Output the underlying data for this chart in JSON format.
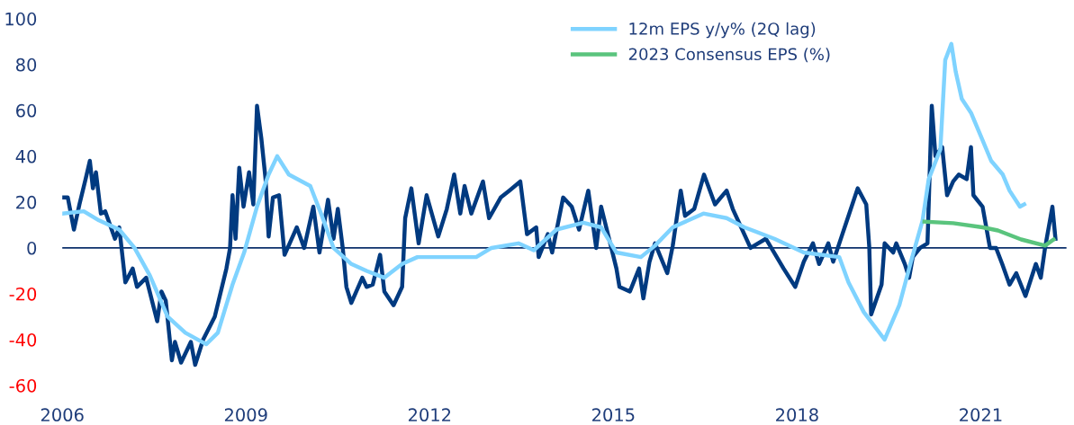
{
  "chart_data": {
    "type": "line",
    "xlim": [
      2006,
      2022.4
    ],
    "xticks": [
      2006,
      2009,
      2012,
      2015,
      2018,
      2021
    ],
    "ylim": [
      -60,
      100
    ],
    "yticks": [
      -60,
      -40,
      -20,
      0,
      20,
      40,
      60,
      80,
      100
    ],
    "grid": false,
    "legend": "top right",
    "marker": "none",
    "line_style": "solid",
    "ref_lines": [
      {
        "axis": "y",
        "value": 0,
        "color": "#0b2f6b"
      }
    ],
    "series": [
      {
        "color": "#003a80",
        "x": [
          2006.0,
          2006.09,
          2006.19,
          2006.28,
          2006.38,
          2006.45,
          2006.5,
          2006.55,
          2006.63,
          2006.7,
          2006.86,
          2006.93,
          2007.03,
          2007.15,
          2007.22,
          2007.37,
          2007.55,
          2007.62,
          2007.69,
          2007.79,
          2007.84,
          2007.94,
          2008.1,
          2008.17,
          2008.3,
          2008.49,
          2008.68,
          2008.74,
          2008.78,
          2008.83,
          2008.89,
          2008.96,
          2009.05,
          2009.12,
          2009.18,
          2009.25,
          2009.32,
          2009.37,
          2009.44,
          2009.54,
          2009.63,
          2009.83,
          2009.95,
          2010.1,
          2010.2,
          2010.34,
          2010.43,
          2010.5,
          2010.58,
          2010.64,
          2010.72,
          2010.9,
          2010.97,
          2011.07,
          2011.19,
          2011.26,
          2011.41,
          2011.55,
          2011.6,
          2011.7,
          2011.82,
          2011.95,
          2012.14,
          2012.28,
          2012.4,
          2012.5,
          2012.57,
          2012.68,
          2012.87,
          2012.97,
          2013.16,
          2013.3,
          2013.48,
          2013.59,
          2013.74,
          2013.78,
          2013.93,
          2014.0,
          2014.18,
          2014.32,
          2014.44,
          2014.59,
          2014.72,
          2014.8,
          2015.05,
          2015.1,
          2015.27,
          2015.42,
          2015.49,
          2015.59,
          2015.68,
          2015.88,
          2015.97,
          2016.1,
          2016.17,
          2016.32,
          2016.48,
          2016.66,
          2016.85,
          2016.95,
          2017.24,
          2017.49,
          2017.78,
          2017.97,
          2018.11,
          2018.26,
          2018.36,
          2018.51,
          2018.59,
          2018.74,
          2018.84,
          2018.99,
          2019.13,
          2019.18,
          2019.21,
          2019.38,
          2019.43,
          2019.57,
          2019.62,
          2019.76,
          2019.83,
          2019.89,
          2020.01,
          2020.13,
          2020.2,
          2020.26,
          2020.37,
          2020.45,
          2020.55,
          2020.64,
          2020.77,
          2020.84,
          2020.88,
          2021.03,
          2021.15,
          2021.25,
          2021.35,
          2021.47,
          2021.58,
          2021.73,
          2021.9,
          2021.98,
          2022.05,
          2022.17,
          2022.22
        ],
        "values": [
          22,
          22,
          8,
          19,
          30,
          38,
          26,
          33,
          15,
          16,
          4,
          9,
          -15,
          -9,
          -17,
          -13,
          -32,
          -19,
          -23,
          -49,
          -41,
          -50,
          -41,
          -51,
          -40,
          -30,
          -9,
          0,
          23,
          4,
          35,
          18,
          33,
          19,
          62,
          48,
          30,
          5,
          22,
          23,
          -3,
          9,
          0,
          18,
          -2,
          21,
          4,
          17,
          0,
          -17,
          -24,
          -13,
          -17,
          -16,
          -3,
          -19,
          -25,
          -17,
          13,
          26,
          2,
          23,
          5,
          17,
          32,
          15,
          27,
          15,
          29,
          13,
          22,
          25,
          29,
          6,
          9,
          -4,
          6,
          -2,
          22,
          18,
          8,
          25,
          0,
          18,
          -9,
          -17,
          -19,
          -9,
          -22,
          -6,
          2,
          -11,
          1,
          25,
          14,
          17,
          32,
          19,
          25,
          17,
          0,
          4,
          -9,
          -17,
          -6,
          2,
          -7,
          2,
          -6,
          6,
          14,
          26,
          19,
          0,
          -29,
          -16,
          2,
          -2,
          2,
          -7,
          -13,
          -4,
          0,
          2,
          62,
          40,
          44,
          23,
          29,
          32,
          30,
          44,
          23,
          18,
          0,
          0,
          -7,
          -16,
          -11,
          -21,
          -7,
          -13,
          0,
          18,
          4
        ]
      },
      {
        "name": "12m EPS y/y% (2Q lag)",
        "color": "#7fd3ff",
        "x": [
          2006.0,
          2006.35,
          2006.6,
          2006.93,
          2007.18,
          2007.43,
          2007.72,
          2008.01,
          2008.35,
          2008.54,
          2008.78,
          2008.97,
          2009.18,
          2009.37,
          2009.51,
          2009.7,
          2010.05,
          2010.24,
          2010.43,
          2010.72,
          2010.97,
          2011.26,
          2011.55,
          2011.8,
          2012.28,
          2012.76,
          2013.01,
          2013.45,
          2013.7,
          2014.07,
          2014.51,
          2014.8,
          2015.05,
          2015.45,
          2015.68,
          2015.97,
          2016.47,
          2016.85,
          2017.14,
          2017.63,
          2018.11,
          2018.69,
          2018.84,
          2019.09,
          2019.43,
          2019.67,
          2019.86,
          2020.05,
          2020.15,
          2020.34,
          2020.42,
          2020.52,
          2020.59,
          2020.69,
          2020.84,
          2021.03,
          2021.17,
          2021.36,
          2021.47,
          2021.64,
          2021.71
        ],
        "values": [
          15,
          16,
          12,
          8,
          0,
          -12,
          -30,
          -37,
          -42,
          -37,
          -16,
          -2,
          18,
          32,
          40,
          32,
          27,
          14,
          0,
          -7,
          -10,
          -13,
          -7,
          -4,
          -4,
          -4,
          0,
          2,
          -1,
          8,
          11,
          9,
          -2,
          -4,
          1,
          9,
          15,
          13,
          9,
          4,
          -2,
          -4,
          -15,
          -28,
          -40,
          -25,
          -6,
          12,
          30,
          43,
          82,
          89,
          77,
          65,
          59,
          47,
          38,
          32,
          25,
          18,
          19
        ]
      },
      {
        "name": "2023 Consensus EPS (%)",
        "color": "#5ac47d",
        "x": [
          2020.08,
          2020.55,
          2021.03,
          2021.28,
          2021.66,
          2022.05,
          2022.19
        ],
        "values": [
          11.5,
          10.8,
          9,
          7.6,
          3.7,
          1,
          3.7
        ]
      }
    ]
  }
}
